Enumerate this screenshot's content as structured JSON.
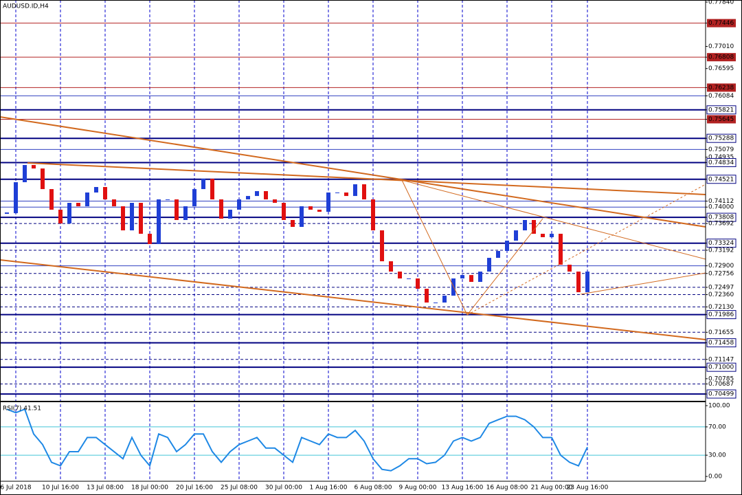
{
  "chart_data": [
    {
      "type": "candlestick",
      "title": "AUDUSD.ID,H4",
      "up_color": "#1f3fd6",
      "down_color": "#e01010",
      "categories": [
        null,
        "6 Jul 2018",
        null,
        null,
        null,
        null,
        "10 Jul 16:00",
        null,
        null,
        null,
        null,
        "13 Jul 08:00",
        null,
        null,
        null,
        null,
        "18 Jul 00:00",
        null,
        null,
        null,
        null,
        "20 Jul 16:00",
        null,
        null,
        null,
        null,
        "25 Jul 08:00",
        null,
        null,
        null,
        null,
        "30 Jul 00:00",
        null,
        null,
        null,
        null,
        "1 Aug 16:00",
        null,
        null,
        null,
        null,
        "6 Aug 08:00",
        null,
        null,
        null,
        null,
        "9 Aug 00:00",
        null,
        null,
        null,
        null,
        "13 Aug 16:00",
        null,
        null,
        null,
        null,
        "16 Aug 08:00",
        null,
        null,
        null,
        null,
        "21 Aug 00:00",
        null,
        null,
        null,
        "23 Aug 16:00"
      ],
      "values": [
        0.73886,
        0.74466,
        0.74788,
        0.74723,
        0.74337,
        0.73951,
        0.73693,
        0.7408,
        0.74015,
        0.74273,
        0.74376,
        0.74144,
        0.74015,
        0.73564,
        0.7408,
        0.735,
        0.73307,
        0.74144,
        0.74144,
        0.73758,
        0.74015,
        0.74337,
        0.7453,
        0.74144,
        0.73783,
        0.73951,
        0.74144,
        0.74208,
        0.74299,
        0.74144,
        0.7408,
        0.73758,
        0.73629,
        0.74015,
        0.73951,
        0.73912,
        0.74273,
        0.74273,
        0.74208,
        0.74427,
        0.74144,
        0.73564,
        0.72985,
        0.72792,
        0.72663,
        0.72663,
        0.7247,
        0.72212,
        0.72212,
        0.72341,
        0.72663,
        0.72727,
        0.72599,
        0.72792,
        0.73049,
        0.73178,
        0.73371,
        0.73564,
        0.73758,
        0.735,
        0.73436,
        0.735,
        0.72921,
        0.72792,
        0.72405,
        0.72792
      ],
      "ylim": [
        0.70384,
        0.77879
      ],
      "yticks": [
        {
          "value": 0.7784,
          "label": "0.77840",
          "line": "none"
        },
        {
          "value": 0.77446,
          "label": "0.77446",
          "line": "red"
        },
        {
          "value": 0.7701,
          "label": "0.77010",
          "line": "none"
        },
        {
          "value": 0.76808,
          "label": "0.76808",
          "line": "red"
        },
        {
          "value": 0.76595,
          "label": "0.76595",
          "line": "none"
        },
        {
          "value": 0.76238,
          "label": "0.76238",
          "line": "red"
        },
        {
          "value": 0.76084,
          "label": "0.76084",
          "line": "blue"
        },
        {
          "value": 0.75821,
          "label": "0.75821",
          "line": "navy"
        },
        {
          "value": 0.75645,
          "label": "0.75645",
          "line": "red"
        },
        {
          "value": 0.75288,
          "label": "0.75288",
          "line": "navy"
        },
        {
          "value": 0.75079,
          "label": "0.75079",
          "line": "blue"
        },
        {
          "value": 0.74935,
          "label": "0.74935",
          "line": "none"
        },
        {
          "value": 0.74834,
          "label": "0.74834",
          "line": "navy"
        },
        {
          "value": 0.74521,
          "label": "0.74521",
          "line": "navy"
        },
        {
          "value": 0.74112,
          "label": "0.74112",
          "line": "blue"
        },
        {
          "value": 0.74,
          "label": "0.74000",
          "line": "blue"
        },
        {
          "value": 0.73808,
          "label": "0.73808",
          "line": "navy"
        },
        {
          "value": 0.73692,
          "label": "0.73692",
          "line": "dash"
        },
        {
          "value": 0.73324,
          "label": "0.73324",
          "line": "navy"
        },
        {
          "value": 0.73192,
          "label": "0.73192",
          "line": "dash"
        },
        {
          "value": 0.729,
          "label": "0.72900",
          "line": "blue"
        },
        {
          "value": 0.72756,
          "label": "0.72756",
          "line": "dash"
        },
        {
          "value": 0.72497,
          "label": "0.72497",
          "line": "dash"
        },
        {
          "value": 0.7236,
          "label": "0.72360",
          "line": "dash"
        },
        {
          "value": 0.7213,
          "label": "0.72130",
          "line": "dash"
        },
        {
          "value": 0.71986,
          "label": "0.71986",
          "line": "navy"
        },
        {
          "value": 0.71655,
          "label": "0.71655",
          "line": "dash"
        },
        {
          "value": 0.71458,
          "label": "0.71458",
          "line": "navy"
        },
        {
          "value": 0.71147,
          "label": "0.71147",
          "line": "dash"
        },
        {
          "value": 0.71,
          "label": "0.71000",
          "line": "navy"
        },
        {
          "value": 0.70785,
          "label": "0.70785",
          "line": "none"
        },
        {
          "value": 0.70687,
          "label": "0.70687",
          "line": "dash"
        },
        {
          "value": 0.70499,
          "label": "0.70499",
          "line": "navy"
        }
      ]
    },
    {
      "type": "line",
      "title": "RSI(7) 41.51",
      "color": "#1e88e5",
      "level_color": "#40c4d8",
      "values": [
        95,
        90,
        95,
        60,
        45,
        20,
        15,
        35,
        35,
        55,
        55,
        45,
        35,
        25,
        55,
        30,
        15,
        60,
        55,
        35,
        45,
        60,
        60,
        35,
        20,
        35,
        45,
        50,
        55,
        40,
        40,
        30,
        20,
        55,
        50,
        45,
        60,
        55,
        55,
        65,
        50,
        25,
        10,
        8,
        15,
        25,
        25,
        18,
        20,
        30,
        50,
        55,
        50,
        55,
        75,
        80,
        85,
        85,
        80,
        70,
        55,
        55,
        30,
        20,
        15,
        41.51
      ],
      "ylim": [
        -6.8,
        103.9
      ],
      "yticks": [
        {
          "value": 100,
          "label": "100.00",
          "line": "none"
        },
        {
          "value": 70,
          "label": "70.00",
          "line": "level"
        },
        {
          "value": 30,
          "label": "30.00",
          "line": "level"
        },
        {
          "value": 0,
          "label": "0.00",
          "line": "none"
        }
      ]
    }
  ]
}
